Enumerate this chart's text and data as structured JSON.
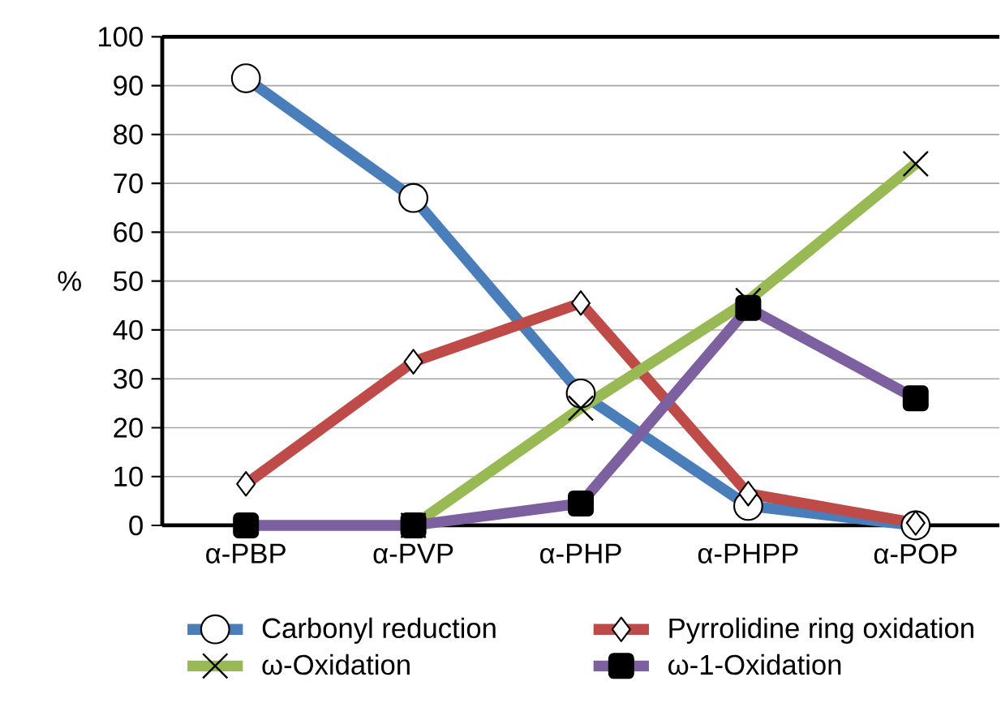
{
  "chart_data": {
    "type": "line",
    "ylabel": "%",
    "categories": [
      "α-PBP",
      "α-PVP",
      "α-PHP",
      "α-PHPP",
      "α-POP"
    ],
    "ylim": [
      0,
      100
    ],
    "yticks": [
      0,
      10,
      20,
      30,
      40,
      50,
      60,
      70,
      80,
      90,
      100
    ],
    "grid": "y",
    "legend": "bottom",
    "series": [
      {
        "name": "Carbonyl reduction",
        "color": "#4a7ebb",
        "marker": "circle",
        "values": [
          91.5,
          67,
          27,
          4,
          0
        ]
      },
      {
        "name": "Pyrrolidine ring oxidation",
        "color": "#be4b48",
        "marker": "diamond",
        "values": [
          8.5,
          33.5,
          45.5,
          6.5,
          0.5
        ]
      },
      {
        "name": "ω-Oxidation",
        "color": "#98b954",
        "marker": "cross",
        "values": [
          null,
          0,
          24,
          46,
          74
        ]
      },
      {
        "name": "ω-1-Oxidation",
        "color": "#7d60a0",
        "marker": "square",
        "values": [
          0,
          0,
          4.5,
          44.5,
          26
        ]
      }
    ]
  }
}
